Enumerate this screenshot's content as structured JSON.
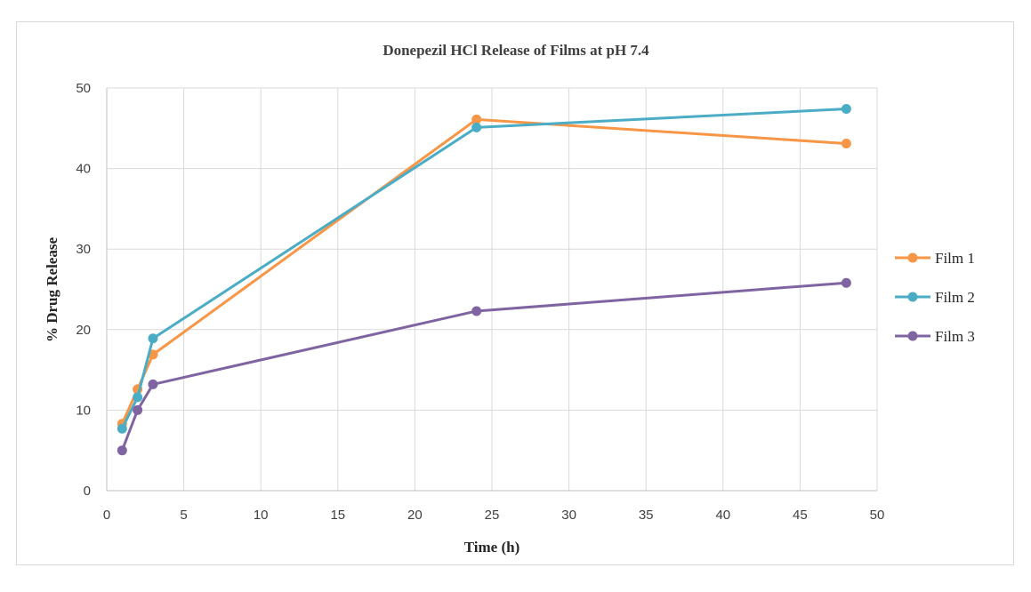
{
  "chart_data": {
    "type": "line",
    "title": "Donepezil HCl Release of Films at pH 7.4",
    "xlabel": "Time (h)",
    "ylabel": "% Drug Release",
    "xlim": [
      0,
      50
    ],
    "ylim": [
      0,
      50
    ],
    "xticks": [
      0,
      5,
      10,
      15,
      20,
      25,
      30,
      35,
      40,
      45,
      50
    ],
    "yticks": [
      0,
      10,
      20,
      30,
      40,
      50
    ],
    "grid": true,
    "legend_position": "right",
    "x": [
      1,
      2,
      3,
      24,
      48
    ],
    "series": [
      {
        "name": "Film 1",
        "color": "#f79646",
        "values": [
          8.3,
          12.6,
          16.9,
          46.1,
          43.1
        ]
      },
      {
        "name": "Film 2",
        "color": "#4bacc6",
        "values": [
          7.7,
          11.6,
          18.9,
          45.1,
          47.4
        ]
      },
      {
        "name": "Film 3",
        "color": "#8064a2",
        "values": [
          5.0,
          10.0,
          13.2,
          22.3,
          25.8
        ]
      }
    ]
  }
}
